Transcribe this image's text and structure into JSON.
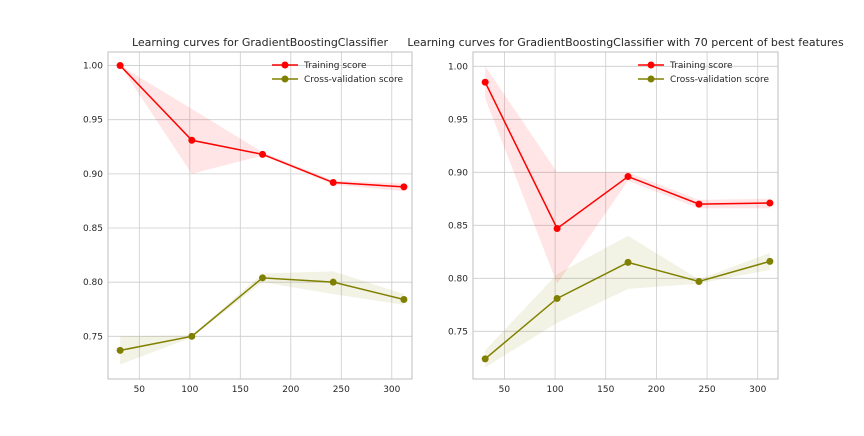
{
  "chart_data": [
    {
      "type": "line",
      "title": "Learning curves for GradientBoostingClassifier",
      "xlabel": "",
      "ylabel": "",
      "xlim": [
        19,
        320
      ],
      "ylim": [
        0.7106,
        1.0125
      ],
      "xticks": [
        50,
        100,
        150,
        200,
        250,
        300
      ],
      "xtick_labels": [
        "50",
        "100",
        "150",
        "200",
        "250",
        "300"
      ],
      "yticks": [
        0.75,
        0.8,
        0.85,
        0.9,
        0.95,
        1.0
      ],
      "ytick_labels": [
        "0.75",
        "0.80",
        "0.85",
        "0.90",
        "0.95",
        "1.00"
      ],
      "grid": true,
      "legend_position": "top-right",
      "x": [
        31,
        102,
        172,
        242,
        312
      ],
      "series": [
        {
          "name": "Training score",
          "color": "#ff0000",
          "values": [
            1.0,
            0.931,
            0.918,
            0.892,
            0.888
          ],
          "band_lower": [
            1.0,
            0.9,
            0.917,
            0.89,
            0.884
          ],
          "band_upper": [
            1.0,
            0.96,
            0.92,
            0.894,
            0.891
          ]
        },
        {
          "name": "Cross-validation score",
          "color": "#808000",
          "values": [
            0.737,
            0.75,
            0.804,
            0.8,
            0.784
          ],
          "band_lower": [
            0.724,
            0.749,
            0.8,
            0.789,
            0.779
          ],
          "band_upper": [
            0.75,
            0.751,
            0.808,
            0.81,
            0.789
          ]
        }
      ]
    },
    {
      "type": "line",
      "title": "Learning curves for GradientBoostingClassifier with 70 percent of best features",
      "xlabel": "",
      "ylabel": "",
      "xlim": [
        19,
        320
      ],
      "ylim": [
        0.705,
        1.0135
      ],
      "xticks": [
        50,
        100,
        150,
        200,
        250,
        300
      ],
      "xtick_labels": [
        "50",
        "100",
        "150",
        "200",
        "250",
        "300"
      ],
      "yticks": [
        0.75,
        0.8,
        0.85,
        0.9,
        0.95,
        1.0
      ],
      "ytick_labels": [
        "0.75",
        "0.80",
        "0.85",
        "0.90",
        "0.95",
        "1.00"
      ],
      "grid": true,
      "legend_position": "top-right",
      "x": [
        31,
        102,
        172,
        242,
        312
      ],
      "series": [
        {
          "name": "Training score",
          "color": "#ff0000",
          "values": [
            0.985,
            0.847,
            0.896,
            0.87,
            0.871
          ],
          "band_lower": [
            0.97,
            0.795,
            0.892,
            0.866,
            0.866
          ],
          "band_upper": [
            1.0,
            0.9,
            0.9,
            0.874,
            0.875
          ]
        },
        {
          "name": "Cross-validation score",
          "color": "#808000",
          "values": [
            0.724,
            0.781,
            0.815,
            0.797,
            0.816
          ],
          "band_lower": [
            0.716,
            0.758,
            0.79,
            0.795,
            0.808
          ],
          "band_upper": [
            0.732,
            0.804,
            0.84,
            0.799,
            0.824
          ]
        }
      ]
    }
  ]
}
